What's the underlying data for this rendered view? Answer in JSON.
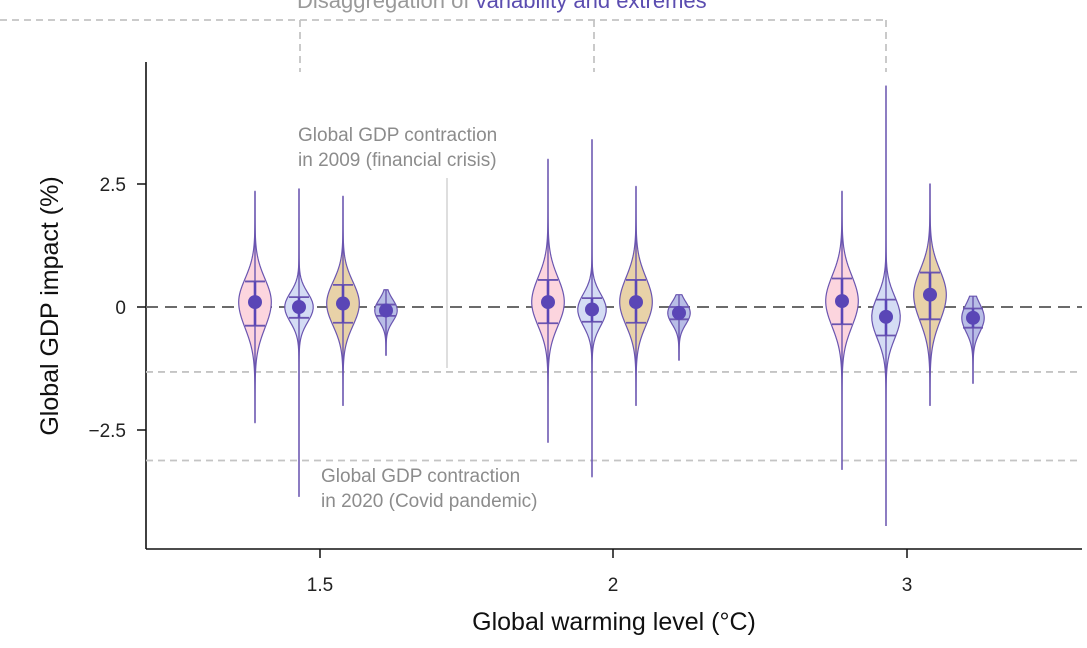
{
  "chart_data": {
    "type": "violin",
    "title_prefix": "Disaggregation of ",
    "title_highlight": "variability and extremes",
    "xlabel": "Global warming level (°C)",
    "ylabel": "Global GDP impact (%)",
    "ylim": [
      -4.8,
      4.9
    ],
    "y_ticks": [
      {
        "value": 2.5,
        "label": "2.5"
      },
      {
        "value": 0,
        "label": "0"
      },
      {
        "value": -2.5,
        "label": "−2.5"
      }
    ],
    "groups": [
      {
        "label": "1.5",
        "violins": [
          {
            "type": "pink",
            "min": -2.35,
            "max": 2.35,
            "q_low": -0.38,
            "q_high": 0.52,
            "mean": 0.1
          },
          {
            "type": "blue",
            "min": -3.85,
            "max": 2.4,
            "q_low": -0.22,
            "q_high": 0.2,
            "mean": 0.0
          },
          {
            "type": "tan",
            "min": -2.0,
            "max": 2.25,
            "q_low": -0.32,
            "q_high": 0.45,
            "mean": 0.07
          },
          {
            "type": "navy",
            "min": -0.98,
            "max": 0.35,
            "q_low": -0.18,
            "q_high": 0.05,
            "mean": -0.07
          }
        ]
      },
      {
        "label": "2",
        "violins": [
          {
            "type": "pink",
            "min": -2.75,
            "max": 3.0,
            "q_low": -0.33,
            "q_high": 0.55,
            "mean": 0.1
          },
          {
            "type": "blue",
            "min": -3.45,
            "max": 3.4,
            "q_low": -0.3,
            "q_high": 0.18,
            "mean": -0.05
          },
          {
            "type": "tan",
            "min": -2.0,
            "max": 2.45,
            "q_low": -0.32,
            "q_high": 0.55,
            "mean": 0.1
          },
          {
            "type": "navy",
            "min": -1.08,
            "max": 0.25,
            "q_low": -0.25,
            "q_high": 0.0,
            "mean": -0.12
          }
        ]
      },
      {
        "label": "3",
        "violins": [
          {
            "type": "pink",
            "min": -3.3,
            "max": 2.35,
            "q_low": -0.35,
            "q_high": 0.58,
            "mean": 0.12
          },
          {
            "type": "blue",
            "min": -4.45,
            "max": 4.5,
            "q_low": -0.58,
            "q_high": 0.15,
            "mean": -0.2
          },
          {
            "type": "tan",
            "min": -2.0,
            "max": 2.5,
            "q_low": -0.25,
            "q_high": 0.7,
            "mean": 0.25
          },
          {
            "type": "navy",
            "min": -1.55,
            "max": 0.22,
            "q_low": -0.42,
            "q_high": -0.03,
            "mean": -0.22
          }
        ]
      }
    ],
    "reference_lines": [
      {
        "value": -1.32,
        "label_lines": [
          "Global GDP contraction",
          "in 2009 (financial crisis)"
        ]
      },
      {
        "value": -3.12,
        "label_lines": [
          "Global GDP contraction",
          "in 2020 (Covid pandemic)"
        ]
      }
    ],
    "colors": {
      "pink": "#fcd5de",
      "blue": "#d4dcf4",
      "tan": "#e8d2a8",
      "navy": "#b8bde6",
      "outline": "#6a55b0",
      "mean": "#5a46b6",
      "highlight": "#5b4db0",
      "grey_text": "#8c8c8c",
      "ref_line": "#c4c4c4"
    }
  }
}
